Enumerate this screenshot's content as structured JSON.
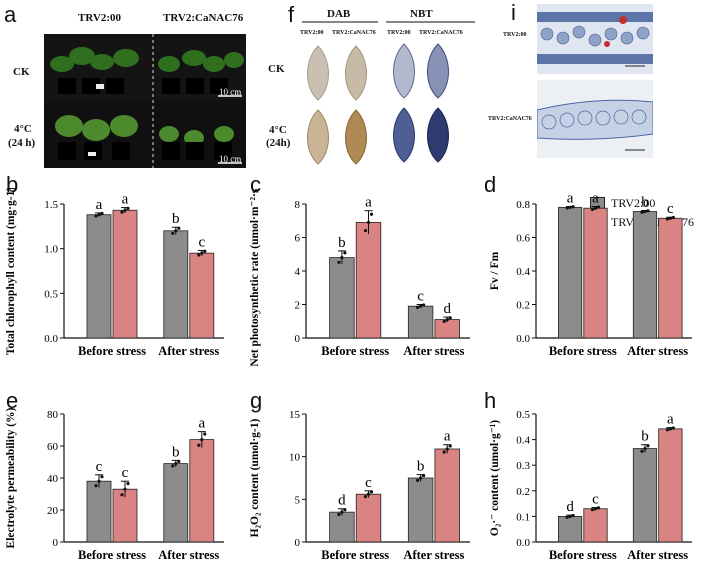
{
  "panel_letters": {
    "a": "a",
    "b": "b",
    "c": "c",
    "d": "d",
    "e": "e",
    "f": "f",
    "g": "g",
    "h": "h",
    "i": "i"
  },
  "panel_a": {
    "col_labels": [
      "TRV2:00",
      "TRV2:CaNAC76"
    ],
    "row_labels": [
      "CK",
      "4°C",
      "(24 h)"
    ],
    "scale_labels": [
      "10 cm",
      "10 cm"
    ]
  },
  "panel_f": {
    "group_labels": [
      "DAB",
      "NBT"
    ],
    "sub_labels": [
      "TRV2:00",
      "TRV2:CaNAC76",
      "TRV2:00",
      "TRV2:CaNAC76"
    ],
    "row_labels": [
      "CK",
      "4°C",
      "(24h)"
    ]
  },
  "panel_i": {
    "row_labels": [
      "TRV2:00",
      "TRV2:CaNAC76"
    ]
  },
  "legend": {
    "items": [
      {
        "name": "TRV2:00",
        "color": "#8c8c8c"
      },
      {
        "name": "TRV2:CaNAC76",
        "color": "#d98482"
      }
    ]
  },
  "chart_data": [
    {
      "id": "b",
      "type": "bar",
      "categories": [
        "Before stress",
        "After stress"
      ],
      "series": [
        {
          "name": "TRV2:00",
          "values": [
            1.38,
            1.2
          ],
          "errors": [
            0.02,
            0.04
          ],
          "letters": [
            "a",
            "b"
          ]
        },
        {
          "name": "TRV2:CaNAC76",
          "values": [
            1.43,
            0.95
          ],
          "errors": [
            0.03,
            0.03
          ],
          "letters": [
            "a",
            "c"
          ]
        }
      ],
      "ylabel": "Total chlorophyll content (mg·g-1)",
      "ylim": [
        0,
        1.5
      ],
      "yticks": [
        "0.0",
        "0.5",
        "1.0",
        "1.5"
      ],
      "tickvals": [
        0,
        0.5,
        1.0,
        1.5
      ]
    },
    {
      "id": "c",
      "type": "bar",
      "categories": [
        "Before stress",
        "After stress"
      ],
      "series": [
        {
          "name": "TRV2:00",
          "values": [
            4.8,
            1.9
          ],
          "errors": [
            0.4,
            0.1
          ],
          "letters": [
            "b",
            "c"
          ]
        },
        {
          "name": "TRV2:CaNAC76",
          "values": [
            6.9,
            1.1
          ],
          "errors": [
            0.7,
            0.15
          ],
          "letters": [
            "a",
            "d"
          ]
        }
      ],
      "ylabel": "Net photosynthetic rate (umol·m⁻²·s⁻¹)",
      "ylim": [
        0,
        8
      ],
      "yticks": [
        "0",
        "2",
        "4",
        "6",
        "8"
      ],
      "tickvals": [
        0,
        2,
        4,
        6,
        8
      ]
    },
    {
      "id": "d",
      "type": "bar",
      "categories": [
        "Before stress",
        "After stress"
      ],
      "series": [
        {
          "name": "TRV2:00",
          "values": [
            0.78,
            0.755
          ],
          "errors": [
            0.005,
            0.006
          ],
          "letters": [
            "a",
            "b"
          ]
        },
        {
          "name": "TRV2:CaNAC76",
          "values": [
            0.775,
            0.715
          ],
          "errors": [
            0.01,
            0.006
          ],
          "letters": [
            "a",
            "c"
          ]
        }
      ],
      "ylabel": "Fv / Fm",
      "ylim": [
        0,
        0.8
      ],
      "yticks": [
        "0.0",
        "0.2",
        "0.4",
        "0.6",
        "0.8"
      ],
      "tickvals": [
        0,
        0.2,
        0.4,
        0.6,
        0.8
      ]
    },
    {
      "id": "e",
      "type": "bar",
      "categories": [
        "Before stress",
        "After stress"
      ],
      "series": [
        {
          "name": "TRV2:00",
          "values": [
            38,
            49
          ],
          "errors": [
            4,
            2
          ],
          "letters": [
            "c",
            "b"
          ]
        },
        {
          "name": "TRV2:CaNAC76",
          "values": [
            33,
            64
          ],
          "errors": [
            5,
            5
          ],
          "letters": [
            "c",
            "a"
          ]
        }
      ],
      "ylabel": "Electrolyte permeability (%)",
      "ylim": [
        0,
        80
      ],
      "yticks": [
        "0",
        "20",
        "40",
        "60",
        "80"
      ],
      "tickvals": [
        0,
        20,
        40,
        60,
        80
      ]
    },
    {
      "id": "g",
      "type": "bar",
      "categories": [
        "Before stress",
        "After stress"
      ],
      "series": [
        {
          "name": "TRV2:00",
          "values": [
            3.5,
            7.5
          ],
          "errors": [
            0.4,
            0.4
          ],
          "letters": [
            "d",
            "b"
          ]
        },
        {
          "name": "TRV2:CaNAC76",
          "values": [
            5.6,
            10.9
          ],
          "errors": [
            0.4,
            0.5
          ],
          "letters": [
            "c",
            "a"
          ]
        }
      ],
      "ylabel": "H₂O₂ content (umol·g-1)",
      "ylim": [
        0,
        15
      ],
      "yticks": [
        "0",
        "5",
        "10",
        "15"
      ],
      "tickvals": [
        0,
        5,
        10,
        15
      ]
    },
    {
      "id": "h",
      "type": "bar",
      "categories": [
        "Before stress",
        "After stress"
      ],
      "series": [
        {
          "name": "TRV2:00",
          "values": [
            0.1,
            0.365
          ],
          "errors": [
            0.005,
            0.015
          ],
          "letters": [
            "d",
            "b"
          ]
        },
        {
          "name": "TRV2:CaNAC76",
          "values": [
            0.13,
            0.442
          ],
          "errors": [
            0.005,
            0.005
          ],
          "letters": [
            "c",
            "a"
          ]
        }
      ],
      "ylabel": "O₂·⁻ content (umol·g⁻¹)",
      "ylim": [
        0,
        0.5
      ],
      "yticks": [
        "0.0",
        "0.1",
        "0.2",
        "0.3",
        "0.4",
        "0.5"
      ],
      "tickvals": [
        0,
        0.1,
        0.2,
        0.3,
        0.4,
        0.5
      ]
    }
  ]
}
